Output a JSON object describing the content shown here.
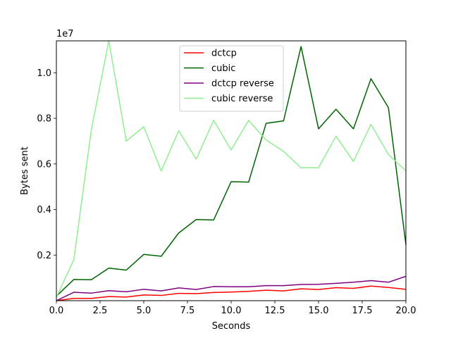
{
  "chart_data": {
    "type": "line",
    "title": "",
    "xlabel": "Seconds",
    "ylabel": "Bytes sent",
    "y_offset_label": "1e7",
    "xlim": [
      0,
      20
    ],
    "ylim": [
      0,
      11400000
    ],
    "x_ticks": [
      0,
      2.5,
      5,
      7.5,
      10,
      12.5,
      15,
      17.5,
      20
    ],
    "x_tick_labels": [
      "0.0",
      "2.5",
      "5.0",
      "7.5",
      "10.0",
      "12.5",
      "15.0",
      "17.5",
      "20.0"
    ],
    "y_ticks": [
      2000000,
      4000000,
      6000000,
      8000000,
      10000000
    ],
    "y_tick_labels": [
      "0.2",
      "0.4",
      "0.6",
      "0.8",
      "1.0"
    ],
    "grid": false,
    "legend_position": "top-center",
    "x": [
      0,
      1,
      2,
      3,
      4,
      5,
      6,
      7,
      8,
      9,
      10,
      11,
      12,
      13,
      14,
      15,
      16,
      17,
      18,
      19,
      20
    ],
    "series": [
      {
        "name": "dctcp",
        "color": "#ff0000",
        "values": [
          0,
          100000,
          100000,
          180000,
          160000,
          250000,
          230000,
          320000,
          310000,
          360000,
          380000,
          410000,
          460000,
          430000,
          520000,
          490000,
          570000,
          540000,
          640000,
          580000,
          500000
        ]
      },
      {
        "name": "cubic",
        "color": "#006400",
        "values": [
          200000,
          930000,
          920000,
          1430000,
          1340000,
          2030000,
          1950000,
          2970000,
          3560000,
          3540000,
          5220000,
          5200000,
          7780000,
          7890000,
          11150000,
          7540000,
          8400000,
          7540000,
          9740000,
          8470000,
          2460000
        ]
      },
      {
        "name": "dctcp reverse",
        "color": "#800080",
        "values": [
          0,
          370000,
          330000,
          440000,
          390000,
          500000,
          430000,
          560000,
          490000,
          620000,
          610000,
          610000,
          660000,
          660000,
          710000,
          720000,
          760000,
          810000,
          880000,
          810000,
          1070000
        ]
      },
      {
        "name": "cubic reverse",
        "color": "#90ee90",
        "values": [
          150000,
          1800000,
          7500000,
          11400000,
          7000000,
          7630000,
          5690000,
          7460000,
          6210000,
          7910000,
          6610000,
          7910000,
          7050000,
          6550000,
          5830000,
          5830000,
          7220000,
          6110000,
          7740000,
          6410000,
          5700000
        ]
      }
    ]
  }
}
